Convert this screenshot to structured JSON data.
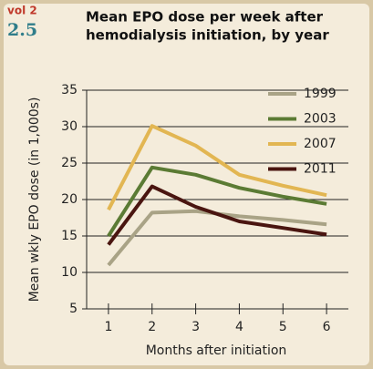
{
  "header": {
    "volume": "vol 2",
    "section": "2.5"
  },
  "chart_data": {
    "type": "line",
    "title": [
      "Mean EPO dose per week after",
      "hemodialysis initiation, by year"
    ],
    "xlabel": "Months after initiation",
    "ylabel": "Mean wkly EPO dose (in 1,000s)",
    "categories": [
      "1",
      "2",
      "3",
      "4",
      "5",
      "6"
    ],
    "series": [
      {
        "name": "1999",
        "color": "#a9a386",
        "values": [
          11,
          18.2,
          18.4,
          17.7,
          17.2,
          16.6
        ]
      },
      {
        "name": "2003",
        "color": "#5b7b34",
        "values": [
          15,
          24.4,
          23.4,
          21.6,
          20.4,
          19.4
        ]
      },
      {
        "name": "2007",
        "color": "#e2b652",
        "values": [
          18.6,
          30.1,
          27.4,
          23.4,
          21.9,
          20.6
        ]
      },
      {
        "name": "2011",
        "color": "#4a1510",
        "values": [
          13.8,
          21.8,
          19,
          17,
          16.1,
          15.2
        ]
      }
    ],
    "ylim": [
      5,
      35
    ],
    "yticks": [
      5,
      10,
      15,
      20,
      25,
      30,
      35
    ],
    "grid": true,
    "legend": "top-right"
  }
}
